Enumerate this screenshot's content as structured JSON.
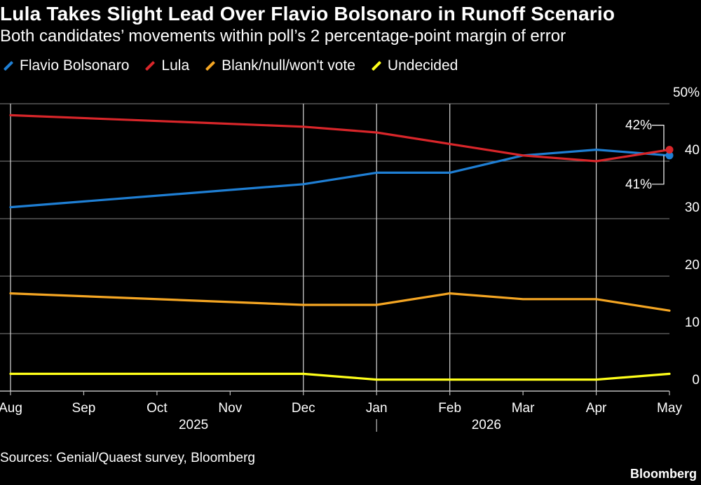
{
  "title": "Lula Takes Slight Lead Over Flavio Bolsonaro in Runoff Scenario",
  "subtitle": "Both candidates’ movements within poll’s 2 percentage-point margin of error",
  "source": "Sources: Genial/Quaest survey, Bloomberg",
  "brand": "Bloomberg",
  "chart_data": {
    "type": "line",
    "x": [
      "Aug",
      "Sep",
      "Oct",
      "Nov",
      "Dec",
      "Jan",
      "Feb",
      "Mar",
      "Apr",
      "May"
    ],
    "year_labels": [
      {
        "label": "2025",
        "month_index": 2.5
      },
      {
        "label": "2026",
        "month_index": 6.5
      }
    ],
    "ylim": [
      0,
      50
    ],
    "yticks": [
      0,
      10,
      20,
      30,
      40,
      50
    ],
    "ytick_labels": [
      "0",
      "10",
      "20",
      "30",
      "40",
      "50%"
    ],
    "survey_months": [
      "Aug",
      "Dec",
      "Jan",
      "Feb",
      "Apr"
    ],
    "grid": true,
    "legend_placement": "top-left",
    "series": [
      {
        "name": "Flavio Bolsonaro",
        "color": "#1f7fd4",
        "points": [
          {
            "x": "Aug",
            "y": 32
          },
          {
            "x": "Dec",
            "y": 36
          },
          {
            "x": "Jan",
            "y": 38
          },
          {
            "x": "Feb",
            "y": 38
          },
          {
            "x": "Mar",
            "y": 41
          },
          {
            "x": "Apr",
            "y": 42
          },
          {
            "x": "May",
            "y": 41
          }
        ],
        "end_marker": true
      },
      {
        "name": "Lula",
        "color": "#d9262a",
        "points": [
          {
            "x": "Aug",
            "y": 48
          },
          {
            "x": "Dec",
            "y": 46
          },
          {
            "x": "Jan",
            "y": 45
          },
          {
            "x": "Feb",
            "y": 43
          },
          {
            "x": "Mar",
            "y": 41
          },
          {
            "x": "Apr",
            "y": 40
          },
          {
            "x": "May",
            "y": 42
          }
        ],
        "end_marker": true
      },
      {
        "name": "Blank/null/won't vote",
        "color": "#f5a623",
        "points": [
          {
            "x": "Aug",
            "y": 17
          },
          {
            "x": "Dec",
            "y": 15
          },
          {
            "x": "Jan",
            "y": 15
          },
          {
            "x": "Feb",
            "y": 17
          },
          {
            "x": "Mar",
            "y": 16
          },
          {
            "x": "Apr",
            "y": 16
          },
          {
            "x": "May",
            "y": 14
          }
        ],
        "end_marker": false
      },
      {
        "name": "Undecided",
        "color": "#ffff1a",
        "points": [
          {
            "x": "Aug",
            "y": 3
          },
          {
            "x": "Dec",
            "y": 3
          },
          {
            "x": "Jan",
            "y": 2
          },
          {
            "x": "Feb",
            "y": 2
          },
          {
            "x": "Mar",
            "y": 2
          },
          {
            "x": "Apr",
            "y": 2
          },
          {
            "x": "May",
            "y": 3
          }
        ],
        "end_marker": false
      }
    ],
    "annotations": [
      {
        "text": "42%",
        "series": "Lula",
        "position": "above"
      },
      {
        "text": "41%",
        "series": "Flavio Bolsonaro",
        "position": "below"
      }
    ]
  }
}
